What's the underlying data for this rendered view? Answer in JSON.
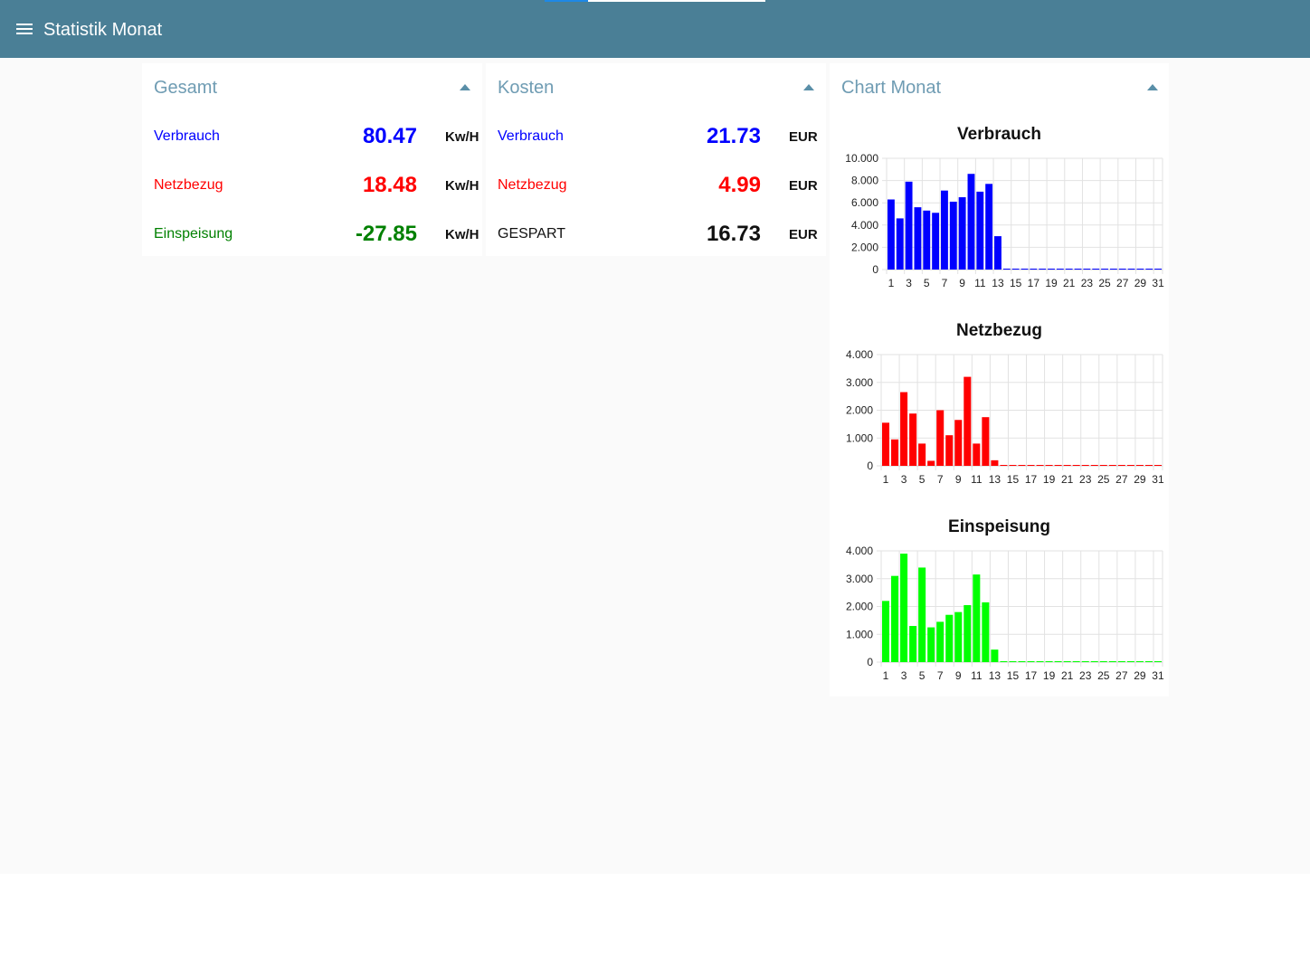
{
  "header": {
    "title": "Statistik Monat"
  },
  "gesamt": {
    "title": "Gesamt",
    "rows": [
      {
        "label": "Verbrauch",
        "value": "80.47",
        "unit": "Kw/H",
        "color": "#0000ff"
      },
      {
        "label": "Netzbezug",
        "value": "18.48",
        "unit": "Kw/H",
        "color": "#ff0000"
      },
      {
        "label": "Einspeisung",
        "value": "-27.85",
        "unit": "Kw/H",
        "color": "#008000"
      }
    ]
  },
  "kosten": {
    "title": "Kosten",
    "rows": [
      {
        "label": "Verbrauch",
        "value": "21.73",
        "unit": "EUR",
        "color": "#0000ff"
      },
      {
        "label": "Netzbezug",
        "value": "4.99",
        "unit": "EUR",
        "color": "#ff0000"
      },
      {
        "label": "GESPART",
        "value": "16.73",
        "unit": "EUR",
        "color": "#111111"
      }
    ]
  },
  "chart_card": {
    "title": "Chart Monat"
  },
  "chart_data": [
    {
      "type": "bar",
      "title": "Verbrauch",
      "color": "#0000ff",
      "categories": [
        1,
        2,
        3,
        4,
        5,
        6,
        7,
        8,
        9,
        10,
        11,
        12,
        13,
        14,
        15,
        16,
        17,
        18,
        19,
        20,
        21,
        22,
        23,
        24,
        25,
        26,
        27,
        28,
        29,
        30,
        31
      ],
      "tick_labels": [
        "1",
        "3",
        "5",
        "7",
        "9",
        "11",
        "13",
        "15",
        "17",
        "19",
        "21",
        "23",
        "25",
        "27",
        "29",
        "31"
      ],
      "values": [
        6.3,
        4.6,
        7.9,
        5.6,
        5.3,
        5.1,
        7.1,
        6.1,
        6.5,
        8.6,
        7.0,
        7.7,
        3.0,
        0,
        0,
        0,
        0,
        0,
        0,
        0,
        0,
        0,
        0,
        0,
        0,
        0,
        0,
        0,
        0,
        0,
        0
      ],
      "ylim": [
        0,
        10
      ],
      "yticks": [
        "0",
        "2.000",
        "4.000",
        "6.000",
        "8.000",
        "10.000"
      ],
      "grid": true
    },
    {
      "type": "bar",
      "title": "Netzbezug",
      "color": "#ff0000",
      "categories": [
        1,
        2,
        3,
        4,
        5,
        6,
        7,
        8,
        9,
        10,
        11,
        12,
        13,
        14,
        15,
        16,
        17,
        18,
        19,
        20,
        21,
        22,
        23,
        24,
        25,
        26,
        27,
        28,
        29,
        30,
        31
      ],
      "tick_labels": [
        "1",
        "3",
        "5",
        "7",
        "9",
        "11",
        "13",
        "15",
        "17",
        "19",
        "21",
        "23",
        "25",
        "27",
        "29",
        "31"
      ],
      "values": [
        1.55,
        0.95,
        2.65,
        1.88,
        0.8,
        0.18,
        2.0,
        1.1,
        1.65,
        3.2,
        0.8,
        1.75,
        0.2,
        0,
        0,
        0,
        0,
        0,
        0,
        0,
        0,
        0,
        0,
        0,
        0,
        0,
        0,
        0,
        0,
        0,
        0
      ],
      "ylim": [
        0,
        4
      ],
      "yticks": [
        "0",
        "1.000",
        "2.000",
        "3.000",
        "4.000"
      ],
      "grid": true
    },
    {
      "type": "bar",
      "title": "Einspeisung",
      "color": "#00ff00",
      "categories": [
        1,
        2,
        3,
        4,
        5,
        6,
        7,
        8,
        9,
        10,
        11,
        12,
        13,
        14,
        15,
        16,
        17,
        18,
        19,
        20,
        21,
        22,
        23,
        24,
        25,
        26,
        27,
        28,
        29,
        30,
        31
      ],
      "tick_labels": [
        "1",
        "3",
        "5",
        "7",
        "9",
        "11",
        "13",
        "15",
        "17",
        "19",
        "21",
        "23",
        "25",
        "27",
        "29",
        "31"
      ],
      "values": [
        2.2,
        3.1,
        3.9,
        1.3,
        3.4,
        1.25,
        1.45,
        1.7,
        1.8,
        2.05,
        3.15,
        2.15,
        0.45,
        0,
        0,
        0,
        0,
        0,
        0,
        0,
        0,
        0,
        0,
        0,
        0,
        0,
        0,
        0,
        0,
        0,
        0
      ],
      "ylim": [
        0,
        4
      ],
      "yticks": [
        "0",
        "1.000",
        "2.000",
        "3.000",
        "4.000"
      ],
      "grid": true
    }
  ]
}
